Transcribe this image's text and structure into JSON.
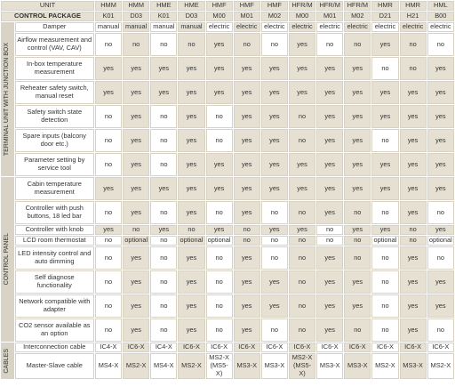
{
  "header": {
    "unit_label": "UNIT",
    "units": [
      "HMM",
      "HMM",
      "HME",
      "HME",
      "HMF",
      "HMF",
      "HMF",
      "HFR/M",
      "HFR/M",
      "HFR/M",
      "HMR",
      "HMR",
      "HML"
    ],
    "package_label": "CONTROL PACKAGE",
    "packages": [
      "K01",
      "D03",
      "K01",
      "D03",
      "M00",
      "M01",
      "M02",
      "M00",
      "M01",
      "M02",
      "D21",
      "H21",
      "B00"
    ]
  },
  "sections": [
    {
      "label": "TERMINAL UNIT WITH JUNCTION BOX",
      "rows": [
        {
          "label": "Damper",
          "values": [
            "manual",
            "manual",
            "manual",
            "manual",
            "electric",
            "electric",
            "electric",
            "electric",
            "electric",
            "electric",
            "electric",
            "electric",
            "electric"
          ]
        },
        {
          "label": "Airflow measurement and control (VAV, CAV)",
          "values": [
            "no",
            "no",
            "no",
            "no",
            "yes",
            "no",
            "no",
            "yes",
            "no",
            "no",
            "yes",
            "no",
            "no"
          ]
        },
        {
          "label": "In-box temperature measurement",
          "values": [
            "yes",
            "yes",
            "yes",
            "yes",
            "yes",
            "yes",
            "yes",
            "yes",
            "yes",
            "yes",
            "no",
            "no",
            "yes"
          ]
        },
        {
          "label": "Reheater safety switch, manual reset",
          "values": [
            "yes",
            "yes",
            "yes",
            "yes",
            "yes",
            "yes",
            "yes",
            "yes",
            "yes",
            "yes",
            "yes",
            "yes",
            "yes"
          ]
        },
        {
          "label": "Safety switch state detection",
          "values": [
            "no",
            "yes",
            "no",
            "yes",
            "no",
            "yes",
            "yes",
            "no",
            "yes",
            "yes",
            "yes",
            "yes",
            "yes"
          ]
        },
        {
          "label": "Spare inputs (balcony door etc.)",
          "values": [
            "no",
            "yes",
            "no",
            "yes",
            "no",
            "yes",
            "yes",
            "no",
            "yes",
            "yes",
            "no",
            "yes",
            "yes"
          ]
        },
        {
          "label": "Parameter setting by service tool",
          "values": [
            "no",
            "yes",
            "no",
            "yes",
            "yes",
            "yes",
            "yes",
            "yes",
            "yes",
            "yes",
            "yes",
            "yes",
            "yes"
          ]
        }
      ]
    },
    {
      "label": "CONTROL PANEL",
      "rows": [
        {
          "label": "Cabin temperature measurement",
          "values": [
            "yes",
            "yes",
            "yes",
            "yes",
            "yes",
            "yes",
            "yes",
            "yes",
            "yes",
            "yes",
            "yes",
            "yes",
            "yes"
          ]
        },
        {
          "label": "Controller with push buttons, 18 led bar",
          "values": [
            "no",
            "yes",
            "no",
            "yes",
            "no",
            "yes",
            "no",
            "no",
            "yes",
            "no",
            "no",
            "yes",
            "no"
          ]
        },
        {
          "label": "Controller with knob",
          "values": [
            "yes",
            "no",
            "yes",
            "no",
            "yes",
            "no",
            "yes",
            "yes",
            "no",
            "yes",
            "yes",
            "no",
            "yes"
          ]
        },
        {
          "label": "LCD room thermostat",
          "values": [
            "no",
            "optional",
            "no",
            "optional",
            "optional",
            "no",
            "no",
            "no",
            "no",
            "no",
            "optional",
            "no",
            "optional"
          ]
        },
        {
          "label": "LED intensity control and auto dimming",
          "values": [
            "no",
            "yes",
            "no",
            "yes",
            "no",
            "yes",
            "no",
            "no",
            "yes",
            "no",
            "no",
            "yes",
            "no"
          ]
        },
        {
          "label": "Self diagnose functionality",
          "values": [
            "no",
            "yes",
            "no",
            "yes",
            "no",
            "yes",
            "yes",
            "no",
            "yes",
            "yes",
            "no",
            "yes",
            "yes"
          ]
        },
        {
          "label": "Network compatible with adapter",
          "values": [
            "no",
            "yes",
            "no",
            "yes",
            "no",
            "yes",
            "yes",
            "no",
            "yes",
            "yes",
            "no",
            "yes",
            "yes"
          ]
        },
        {
          "label": "CO2 sensor available as an option",
          "values": [
            "no",
            "yes",
            "no",
            "yes",
            "no",
            "yes",
            "no",
            "no",
            "yes",
            "no",
            "no",
            "yes",
            "no"
          ]
        }
      ]
    },
    {
      "label": "CABLES",
      "rows": [
        {
          "label": "Interconnection cable",
          "values": [
            "IC4-X",
            "IC6-X",
            "IC4-X",
            "IC6-X",
            "IC6-X",
            "IC6-X",
            "IC6-X",
            "IC6-X",
            "IC6-X",
            "IC6-X",
            "IC6-X",
            "IC6-X",
            "IC6-X"
          ]
        },
        {
          "label": "Master-Slave cable",
          "values": [
            "MS4-X",
            "MS2-X",
            "MS4-X",
            "MS2-X",
            "MS2-X (MS5-X)",
            "MS3-X",
            "MS3-X",
            "MS2-X (MS5-X)",
            "MS3-X",
            "MS3-X",
            "MS2-X",
            "MS3-X",
            "MS2-X"
          ]
        }
      ]
    }
  ]
}
